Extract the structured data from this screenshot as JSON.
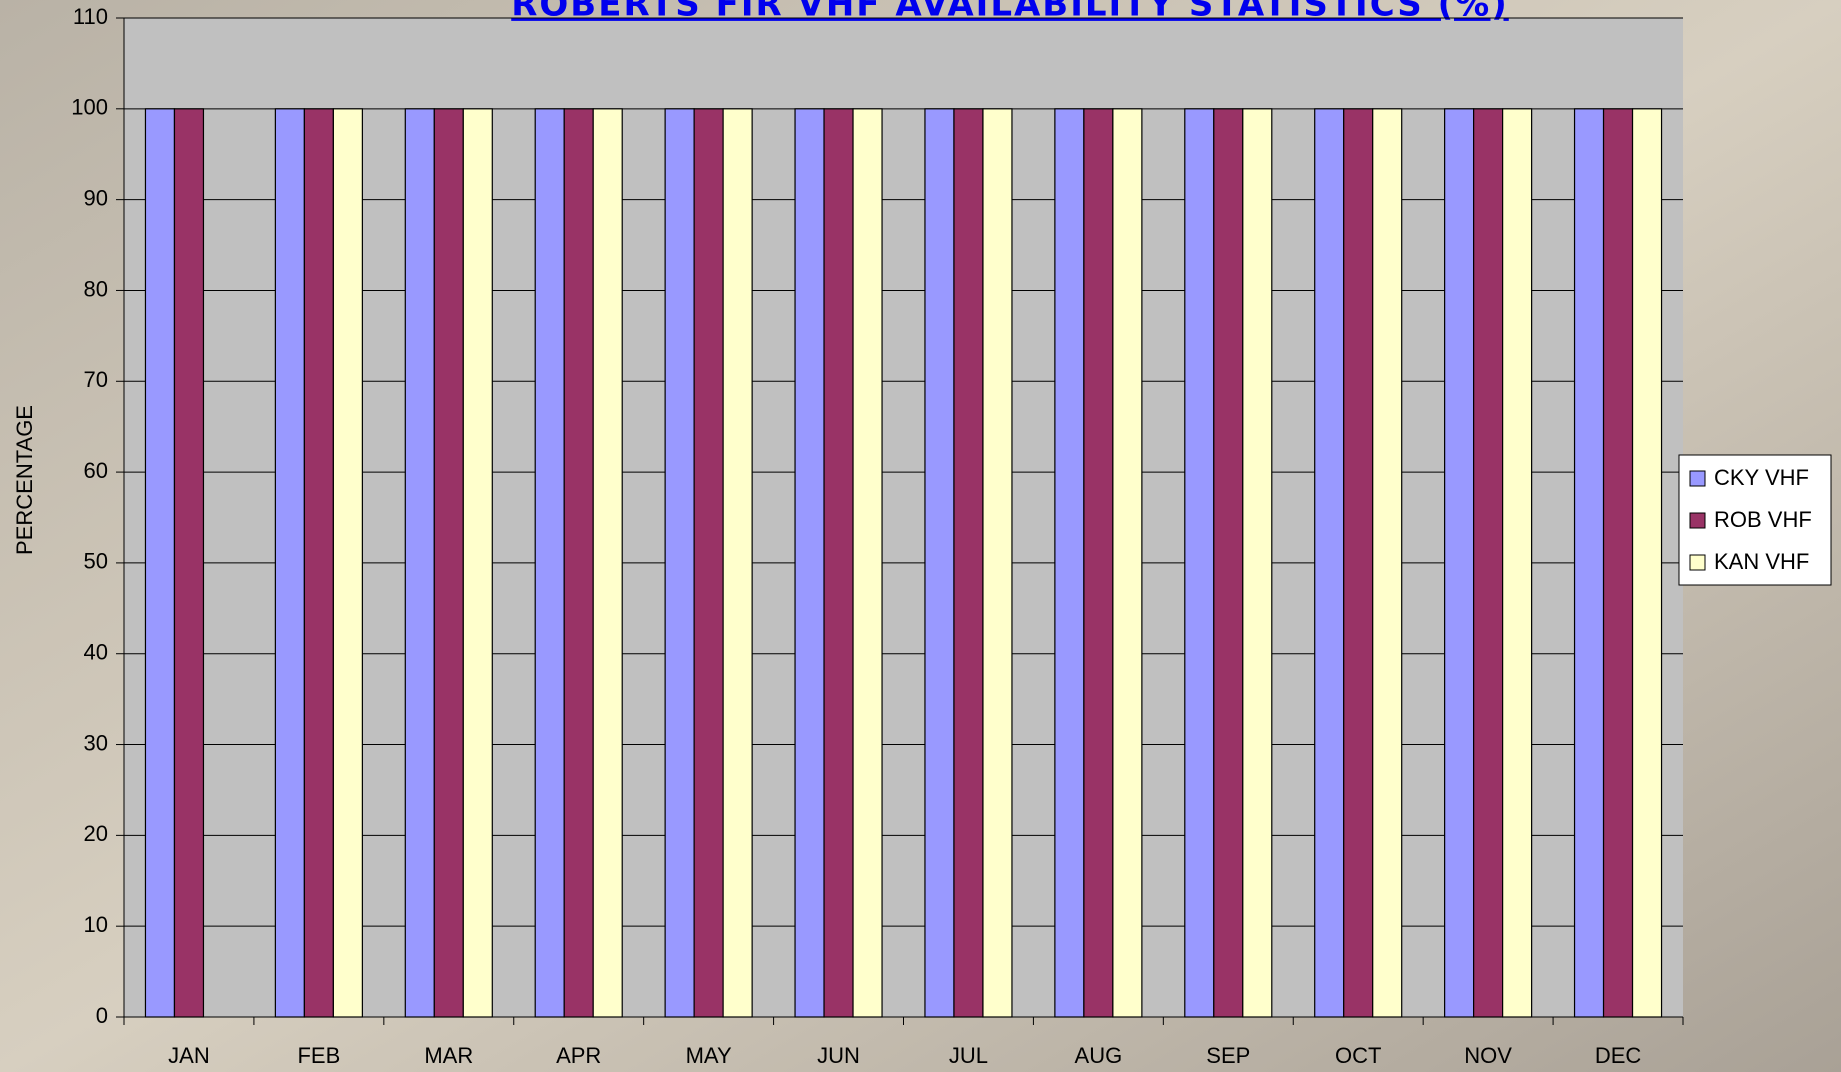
{
  "chart_data": {
    "type": "bar",
    "title": "ROBERTS FIR VHF AVAILABILITY STATISTICS (%)",
    "y_label": "PERCENTAGE",
    "categories": [
      "JAN",
      "FEB",
      "MAR",
      "APR",
      "MAY",
      "JUN",
      "JUL",
      "AUG",
      "SEP",
      "OCT",
      "NOV",
      "DEC"
    ],
    "series": [
      {
        "name": "CKY VHF",
        "color": "#9999ff",
        "values": [
          100,
          100,
          100,
          100,
          100,
          100,
          100,
          100,
          100,
          100,
          100,
          100
        ]
      },
      {
        "name": "ROB VHF",
        "color": "#993366",
        "values": [
          100,
          100,
          100,
          100,
          100,
          100,
          100,
          100,
          100,
          100,
          100,
          100
        ]
      },
      {
        "name": "KAN VHF",
        "color": "#ffffcc",
        "values": [
          null,
          100,
          100,
          100,
          100,
          100,
          100,
          100,
          100,
          100,
          100,
          100
        ]
      }
    ],
    "ylim": [
      0,
      110
    ],
    "yticks": [
      0,
      10,
      20,
      30,
      40,
      50,
      60,
      70,
      80,
      90,
      100,
      110
    ],
    "grid": true,
    "legend": "right"
  }
}
